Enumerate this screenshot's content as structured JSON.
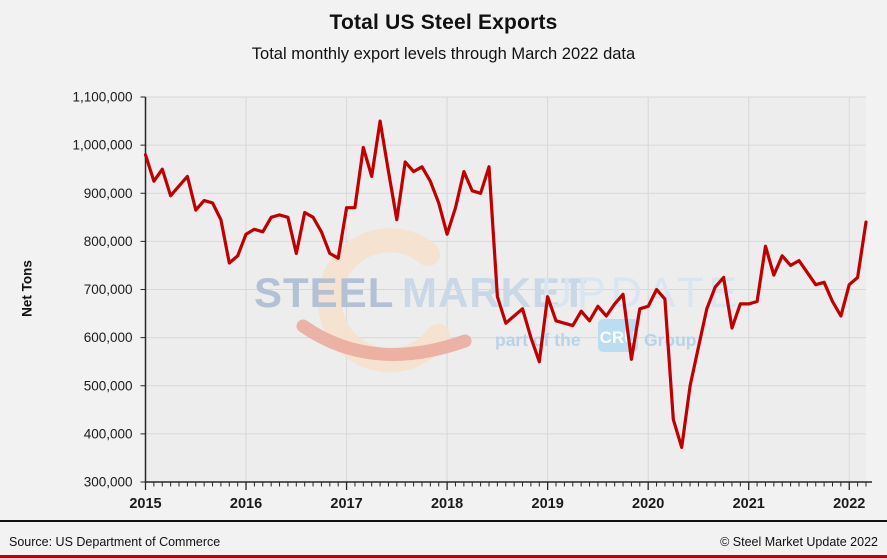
{
  "title": "Total US Steel Exports",
  "subtitle": "Total monthly export levels through March 2022 data",
  "footer": {
    "source": "Source: US Department of Commerce",
    "copyright": "© Steel Market Update 2022"
  },
  "watermark": {
    "word1": "STEEL",
    "word2": "MARKET",
    "word3": "UPDATE",
    "tagline_prefix": "part of the",
    "badge": "CRU",
    "tagline_suffix": "Group"
  },
  "chart_data": {
    "type": "line",
    "title": "Total US Steel Exports",
    "subtitle": "Total monthly export levels through March 2022 data",
    "xlabel": "",
    "ylabel": "Net Tons",
    "ylim": [
      300000,
      1100000
    ],
    "ytick_step": 100000,
    "grid": true,
    "legend": false,
    "line_color": "#c00000",
    "x_years": [
      2015,
      2016,
      2017,
      2018,
      2019,
      2020,
      2021,
      2022
    ],
    "start_month": "Jan 2015",
    "end_month": "Mar 2022",
    "series": [
      {
        "name": "Total US Steel Exports (net tons, monthly)",
        "color": "#c00000",
        "data_by_year": [
          {
            "year": 2015,
            "values": [
              980000,
              925000,
              950000,
              895000,
              915000,
              935000,
              865000,
              885000,
              880000,
              845000,
              755000,
              770000
            ]
          },
          {
            "year": 2016,
            "values": [
              815000,
              825000,
              820000,
              850000,
              855000,
              850000,
              775000,
              860000,
              850000,
              820000,
              775000,
              765000
            ]
          },
          {
            "year": 2017,
            "values": [
              870000,
              870000,
              995000,
              935000,
              1050000,
              945000,
              845000,
              965000,
              945000,
              955000,
              925000,
              880000
            ]
          },
          {
            "year": 2018,
            "values": [
              815000,
              870000,
              945000,
              905000,
              900000,
              955000,
              685000,
              630000,
              645000,
              660000,
              600000,
              550000
            ]
          },
          {
            "year": 2019,
            "values": [
              685000,
              635000,
              630000,
              625000,
              655000,
              635000,
              665000,
              645000,
              670000,
              690000,
              555000,
              660000
            ]
          },
          {
            "year": 2020,
            "values": [
              665000,
              700000,
              680000,
              430000,
              372000,
              500000,
              580000,
              660000,
              705000,
              725000,
              620000,
              670000
            ]
          },
          {
            "year": 2021,
            "values": [
              670000,
              675000,
              790000,
              730000,
              770000,
              750000,
              760000,
              735000,
              710000,
              715000,
              675000,
              645000
            ]
          },
          {
            "year": 2022,
            "values": [
              710000,
              725000,
              840000
            ]
          }
        ]
      }
    ]
  }
}
